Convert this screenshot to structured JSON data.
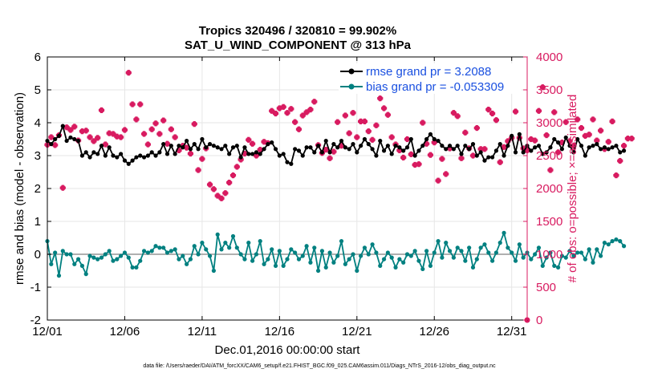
{
  "chart_data": {
    "type": "line",
    "title": "Tropics 320496 / 320810 = 99.902%",
    "subtitle": "SAT_U_WIND_COMPONENT @ 313 hPa",
    "xlabel": "Dec.01,2016 00:00:00 start",
    "ylabel": "rmse and bias (model - observation)",
    "ylabel_right": "# of obs: o=possible; ×=assimilated",
    "footnote": "data file: /Users/raeder/DAI/ATM_forcXX/CAM6_setup/f.e21.FHIST_BGC.f09_025.CAM6assim.011/Diags_NTrS_2016-12/obs_diag_output.nc",
    "xlim": [
      1,
      32
    ],
    "ylim": [
      -2,
      6
    ],
    "ylim_right": [
      0,
      4000
    ],
    "x_ticks": [
      1,
      6,
      11,
      16,
      21,
      26,
      31
    ],
    "x_tick_labels": [
      "12/01",
      "12/06",
      "12/11",
      "12/16",
      "12/21",
      "12/26",
      "12/31"
    ],
    "y_ticks": [
      -2,
      -1,
      0,
      1,
      2,
      3,
      4,
      5,
      6
    ],
    "y_tick_labels": [
      "-2",
      "-1",
      "0",
      "1",
      "2",
      "3",
      "4",
      "5",
      "6"
    ],
    "y_ticks_right": [
      0,
      500,
      1000,
      1500,
      2000,
      2500,
      3000,
      3500,
      4000
    ],
    "y_tick_labels_right": [
      "0",
      "500",
      "1000",
      "1500",
      "2000",
      "2500",
      "3000",
      "3500",
      "4000"
    ],
    "grid": true,
    "zero_line": 0,
    "colors": {
      "rmse": "#000000",
      "bias": "#008080",
      "obs": "#d81b60",
      "legend_text": "#1a50e0",
      "grid": "#e6e6e6",
      "zero_line": "#b0b0b0"
    },
    "x_step": 0.25,
    "x_start": 1.0,
    "series": [
      {
        "name": "rmse grand pr = 3.2088",
        "values": [
          3.45,
          3.35,
          3.5,
          3.6,
          3.9,
          3.45,
          3.55,
          3.5,
          3.45,
          3.0,
          3.1,
          2.95,
          3.1,
          3.05,
          3.3,
          3.0,
          3.25,
          3.0,
          2.95,
          3.05,
          2.85,
          2.75,
          2.85,
          2.95,
          3.0,
          2.95,
          3.0,
          3.1,
          3.0,
          3.1,
          3.35,
          3.05,
          3.3,
          3.05,
          3.3,
          3.25,
          3.45,
          3.2,
          3.35,
          3.2,
          3.5,
          3.25,
          3.35,
          3.3,
          3.25,
          3.2,
          3.3,
          3.05,
          3.25,
          3.3,
          2.95,
          3.25,
          3.05,
          3.05,
          3.1,
          3.05,
          3.2,
          3.35,
          3.4,
          3.2,
          3.0,
          3.05,
          2.8,
          2.75,
          3.2,
          3.15,
          3.0,
          3.25,
          3.25,
          3.1,
          3.3,
          3.1,
          3.45,
          3.1,
          3.35,
          3.25,
          3.45,
          3.25,
          3.2,
          3.35,
          3.1,
          3.3,
          3.5,
          3.35,
          3.2,
          3.0,
          3.45,
          3.15,
          3.3,
          3.05,
          3.3,
          3.25,
          3.15,
          3.25,
          3.5,
          3.0,
          3.15,
          3.3,
          3.5,
          3.65,
          3.5,
          3.45,
          3.3,
          3.2,
          3.3,
          3.2,
          3.3,
          3.05,
          3.3,
          3.2,
          3.35,
          3.0,
          3.1,
          2.85,
          2.95,
          2.95,
          3.15,
          3.35,
          3.0,
          3.3,
          3.6,
          3.1,
          3.65,
          3.1,
          3.3,
          3.15,
          3.25,
          3.3,
          3.05,
          3.1,
          3.25,
          3.5,
          3.4,
          3.2,
          3.55,
          3.3,
          3.1,
          3.5,
          3.3,
          3.0,
          3.25,
          3.3,
          3.35,
          3.2,
          3.25,
          3.2,
          3.25,
          3.3,
          3.1,
          3.15
        ]
      },
      {
        "name": "bias grand pr = -0.053309",
        "values": [
          0.4,
          -0.3,
          0.05,
          -0.65,
          0.1,
          0.0,
          0.0,
          -0.3,
          -0.15,
          -0.35,
          -0.6,
          -0.05,
          -0.1,
          -0.15,
          -0.1,
          0.0,
          0.1,
          -0.2,
          -0.15,
          -0.05,
          0.05,
          -0.1,
          -0.4,
          -0.4,
          -0.2,
          0.1,
          0.05,
          0.1,
          0.25,
          0.2,
          0.2,
          0.05,
          0.1,
          0.15,
          -0.15,
          -0.05,
          -0.3,
          -0.15,
          0.25,
          0.0,
          0.35,
          0.15,
          -0.05,
          -0.5,
          0.6,
          0.15,
          0.35,
          0.2,
          0.55,
          0.2,
          0.0,
          -0.15,
          0.35,
          -0.2,
          0.0,
          0.4,
          -0.3,
          -0.15,
          0.15,
          -0.35,
          0.1,
          -0.35,
          -0.15,
          0.15,
          0.05,
          -0.15,
          -0.05,
          0.25,
          -0.25,
          0.2,
          -0.5,
          0.1,
          -0.4,
          0.05,
          -0.25,
          -0.05,
          0.4,
          -0.3,
          -0.15,
          0.0,
          -0.5,
          -0.05,
          0.2,
          0.0,
          0.3,
          0.05,
          -0.35,
          -0.15,
          0.05,
          -0.1,
          -0.4,
          -0.15,
          -0.25,
          0.0,
          -0.05,
          0.1,
          -0.2,
          -0.45,
          0.1,
          -0.35,
          0.05,
          0.4,
          -0.1,
          0.35,
          0.1,
          -0.1,
          0.2,
          0.1,
          -0.2,
          0.2,
          -0.4,
          -0.15,
          0.2,
          0.3,
          0.05,
          -0.2,
          0.05,
          0.35,
          0.65,
          0.2,
          0.05,
          -0.2,
          0.3,
          -0.1,
          0.05,
          -0.15,
          0.0,
          0.2,
          -0.35,
          -0.1,
          0.05,
          -0.35,
          -0.4,
          -0.05,
          -0.1,
          0.1,
          -0.05,
          0.05,
          0.05,
          -0.15,
          0.15,
          -0.25,
          0.15,
          -0.05,
          0.35,
          0.3,
          0.4,
          0.45,
          0.4,
          0.25
        ]
      },
      {
        "name": "obs assimilated",
        "axis": "right",
        "values": [
          2665,
          2780,
          2660,
          2810,
          2010,
          2930,
          2890,
          2940,
          2730,
          2870,
          2880,
          2780,
          2720,
          2770,
          3190,
          2670,
          2840,
          2830,
          2790,
          2780,
          2890,
          3760,
          3280,
          3050,
          3280,
          2830,
          2670,
          2900,
          2990,
          2830,
          3035,
          2680,
          2900,
          2780,
          2580,
          2650,
          2620,
          2530,
          2980,
          2280,
          2450,
          2610,
          2060,
          1990,
          1890,
          1850,
          1930,
          2090,
          2200,
          2330,
          2440,
          2530,
          2740,
          2680,
          2500,
          2590,
          2710,
          2690,
          3180,
          3140,
          3220,
          3240,
          3150,
          3210,
          3010,
          2900,
          3110,
          3160,
          3200,
          3320,
          2660,
          2540,
          2590,
          2460,
          2560,
          3010,
          2650,
          3110,
          2840,
          3150,
          2780,
          3020,
          3020,
          2870,
          2740,
          2960,
          3370,
          3220,
          3120,
          2780,
          2670,
          2580,
          2470,
          2750,
          2520,
          2360,
          2370,
          3000,
          2680,
          2510,
          2700,
          2120,
          2450,
          2220,
          2610,
          3150,
          3100,
          2460,
          2850,
          2610,
          2500,
          2920,
          2600,
          2600,
          3200,
          3140,
          3040,
          2400,
          2630,
          2720,
          2770,
          3170,
          2770,
          2610,
          2580,
          2750,
          2730,
          3180,
          3540,
          2810,
          2280,
          3160,
          2550,
          2700,
          3010,
          2720,
          2650,
          3050,
          2920,
          2800,
          2820,
          3050,
          2730,
          2880,
          2600,
          2710,
          3020,
          2200,
          2420,
          2650,
          2760,
          2760
        ]
      }
    ],
    "legend": [
      "rmse grand pr = 3.2088",
      "bias grand pr = -0.053309"
    ],
    "legend_position": "top-right"
  }
}
